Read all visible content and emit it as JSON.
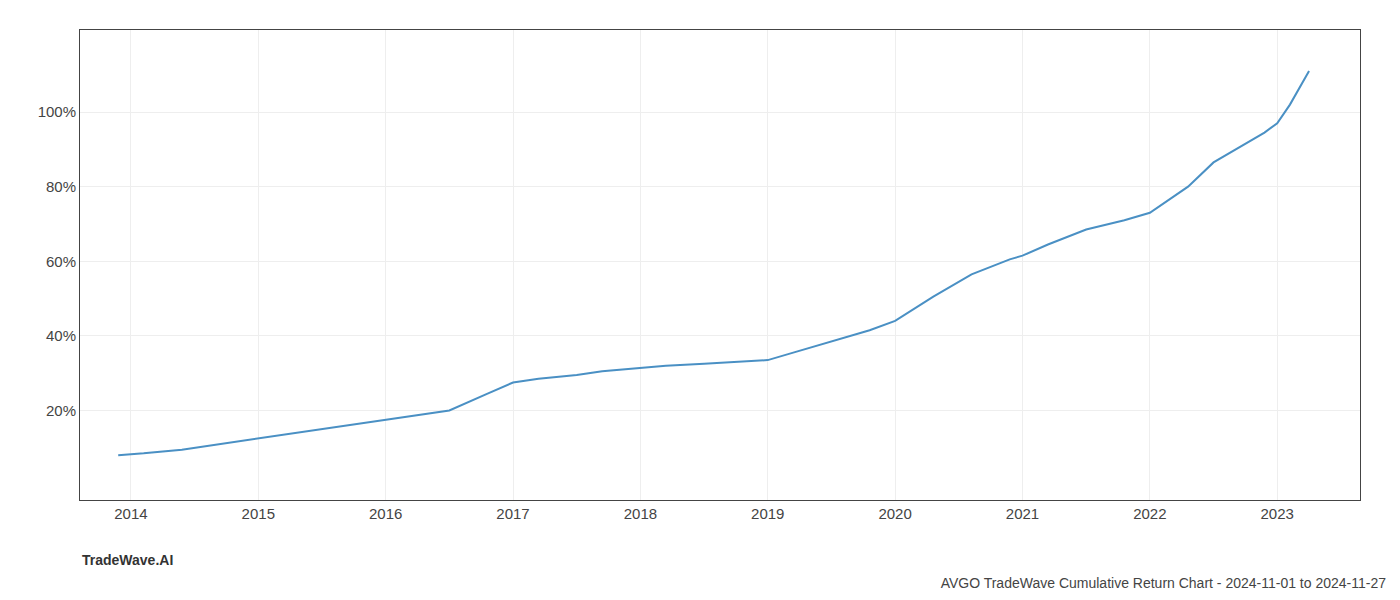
{
  "chart_data": {
    "type": "line",
    "title": "AVGO TradeWave Cumulative Return Chart - 2024-11-01 to 2024-11-27",
    "annotations": [
      "TradeWave.AI"
    ],
    "x": [
      2013.9,
      2014.1,
      2014.4,
      2014.8,
      2015.2,
      2015.6,
      2016.0,
      2016.2,
      2016.5,
      2016.8,
      2017.0,
      2017.2,
      2017.5,
      2017.7,
      2017.85,
      2018.0,
      2018.2,
      2018.5,
      2018.8,
      2019.0,
      2019.2,
      2019.5,
      2019.8,
      2020.0,
      2020.3,
      2020.6,
      2020.9,
      2021.0,
      2021.2,
      2021.5,
      2021.8,
      2022.0,
      2022.3,
      2022.5,
      2022.7,
      2022.9,
      2023.0,
      2023.1,
      2023.25
    ],
    "values": [
      0.08,
      0.085,
      0.095,
      0.115,
      0.135,
      0.155,
      0.175,
      0.185,
      0.2,
      0.245,
      0.275,
      0.285,
      0.295,
      0.305,
      0.31,
      0.315,
      0.32,
      0.325,
      0.33,
      0.335,
      0.355,
      0.385,
      0.415,
      0.44,
      0.505,
      0.565,
      0.605,
      0.615,
      0.645,
      0.685,
      0.71,
      0.73,
      0.8,
      0.865,
      0.905,
      0.945,
      0.97,
      1.02,
      1.11
    ],
    "color": "#4a90c4",
    "xlim": [
      2013.6,
      2023.65
    ],
    "xticks": [
      2014,
      2015,
      2016,
      2017,
      2018,
      2019,
      2020,
      2021,
      2022,
      2023
    ],
    "ylim": [
      -0.04,
      1.22
    ],
    "yticks": [
      {
        "value": 0.2,
        "label": "20%"
      },
      {
        "value": 0.4,
        "label": "40%"
      },
      {
        "value": 0.6,
        "label": "60%"
      },
      {
        "value": 0.8,
        "label": "80%"
      },
      {
        "value": 1.0,
        "label": "100%"
      }
    ],
    "grid": true
  }
}
